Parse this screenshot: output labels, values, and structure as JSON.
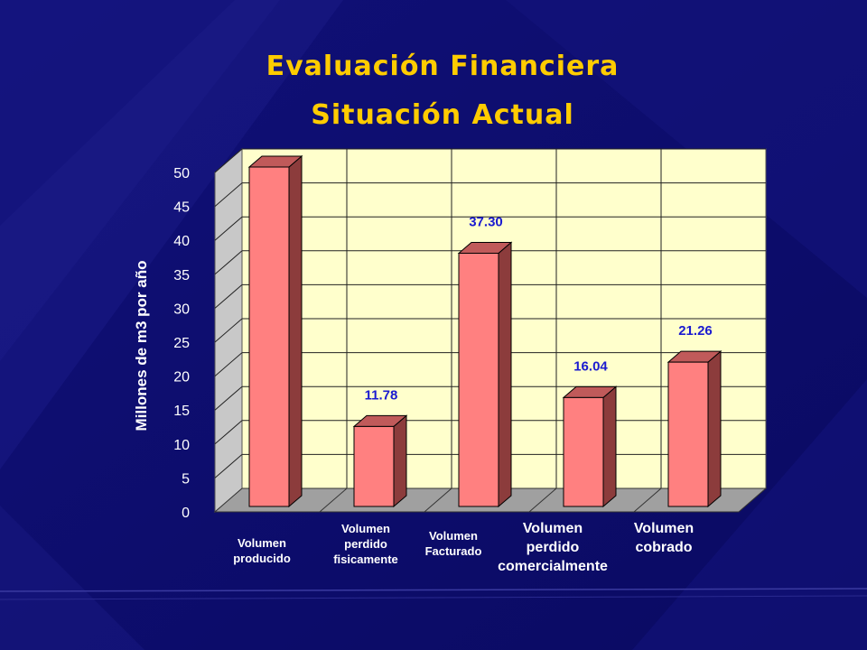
{
  "title": "Evaluación Financiera",
  "subtitle": "Situación Actual",
  "chart_data": {
    "type": "bar",
    "categories": [
      "Volumen\nproducido",
      "Volumen\nperdido\nfisicamente",
      "Volumen\nFacturado",
      "Volumen\nperdido\ncomercialmente",
      "Volumen\ncobrado"
    ],
    "values": [
      50,
      11.78,
      37.3,
      16.04,
      21.26
    ],
    "data_labels": [
      "",
      "11.78",
      "37.30",
      "16.04",
      "21.26"
    ],
    "ylabel": "Millones de m3 por año",
    "ylim": [
      0,
      50
    ],
    "yticks": [
      "0",
      "5",
      "10",
      "15",
      "20",
      "25",
      "30",
      "35",
      "40",
      "45",
      "50"
    ],
    "grid": true,
    "style": "3d",
    "colors": {
      "bar_front": "#ff8080",
      "bar_side": "#8c3c3c",
      "bar_top": "#c05a5a",
      "plot_background": "#ffffcc",
      "data_label": "#1a1ad0",
      "background": "#0c0c6e",
      "title": "#ffcc00"
    }
  }
}
